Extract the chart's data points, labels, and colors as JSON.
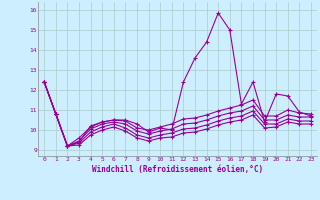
{
  "xlabel": "Windchill (Refroidissement éolien,°C)",
  "background_color": "#cceeff",
  "grid_color": "#aacccc",
  "line_color": "#990099",
  "x": [
    0,
    1,
    2,
    3,
    4,
    5,
    6,
    7,
    8,
    9,
    10,
    11,
    12,
    13,
    14,
    15,
    16,
    17,
    18,
    19,
    20,
    21,
    22,
    23
  ],
  "series": [
    [
      12.4,
      10.8,
      9.2,
      9.4,
      10.2,
      10.4,
      10.5,
      10.5,
      10.3,
      9.9,
      10.1,
      10.0,
      12.4,
      13.6,
      14.4,
      15.85,
      15.0,
      11.3,
      12.4,
      10.4,
      11.8,
      11.7,
      10.9,
      10.7
    ],
    [
      12.4,
      10.8,
      9.2,
      9.6,
      10.15,
      10.4,
      10.5,
      10.45,
      10.1,
      10.0,
      10.15,
      10.3,
      10.55,
      10.6,
      10.75,
      10.95,
      11.1,
      11.25,
      11.5,
      10.7,
      10.7,
      11.0,
      10.85,
      10.8
    ],
    [
      12.4,
      10.8,
      9.2,
      9.45,
      10.05,
      10.3,
      10.4,
      10.3,
      9.95,
      9.8,
      9.95,
      10.05,
      10.3,
      10.35,
      10.5,
      10.7,
      10.85,
      10.95,
      11.2,
      10.5,
      10.5,
      10.75,
      10.65,
      10.65
    ],
    [
      12.4,
      10.8,
      9.2,
      9.35,
      9.9,
      10.15,
      10.3,
      10.1,
      9.75,
      9.6,
      9.75,
      9.85,
      10.05,
      10.1,
      10.25,
      10.45,
      10.6,
      10.7,
      10.95,
      10.3,
      10.3,
      10.55,
      10.45,
      10.45
    ],
    [
      12.4,
      10.8,
      9.2,
      9.25,
      9.75,
      10.0,
      10.15,
      9.95,
      9.6,
      9.45,
      9.6,
      9.65,
      9.85,
      9.9,
      10.05,
      10.25,
      10.4,
      10.5,
      10.75,
      10.1,
      10.15,
      10.4,
      10.3,
      10.3
    ]
  ],
  "ylim": [
    8.7,
    16.4
  ],
  "yticks": [
    9,
    10,
    11,
    12,
    13,
    14,
    15,
    16
  ],
  "xticks": [
    0,
    1,
    2,
    3,
    4,
    5,
    6,
    7,
    8,
    9,
    10,
    11,
    12,
    13,
    14,
    15,
    16,
    17,
    18,
    19,
    20,
    21,
    22,
    23
  ],
  "marker": "+",
  "marker_size": 3,
  "linewidth": 0.8
}
